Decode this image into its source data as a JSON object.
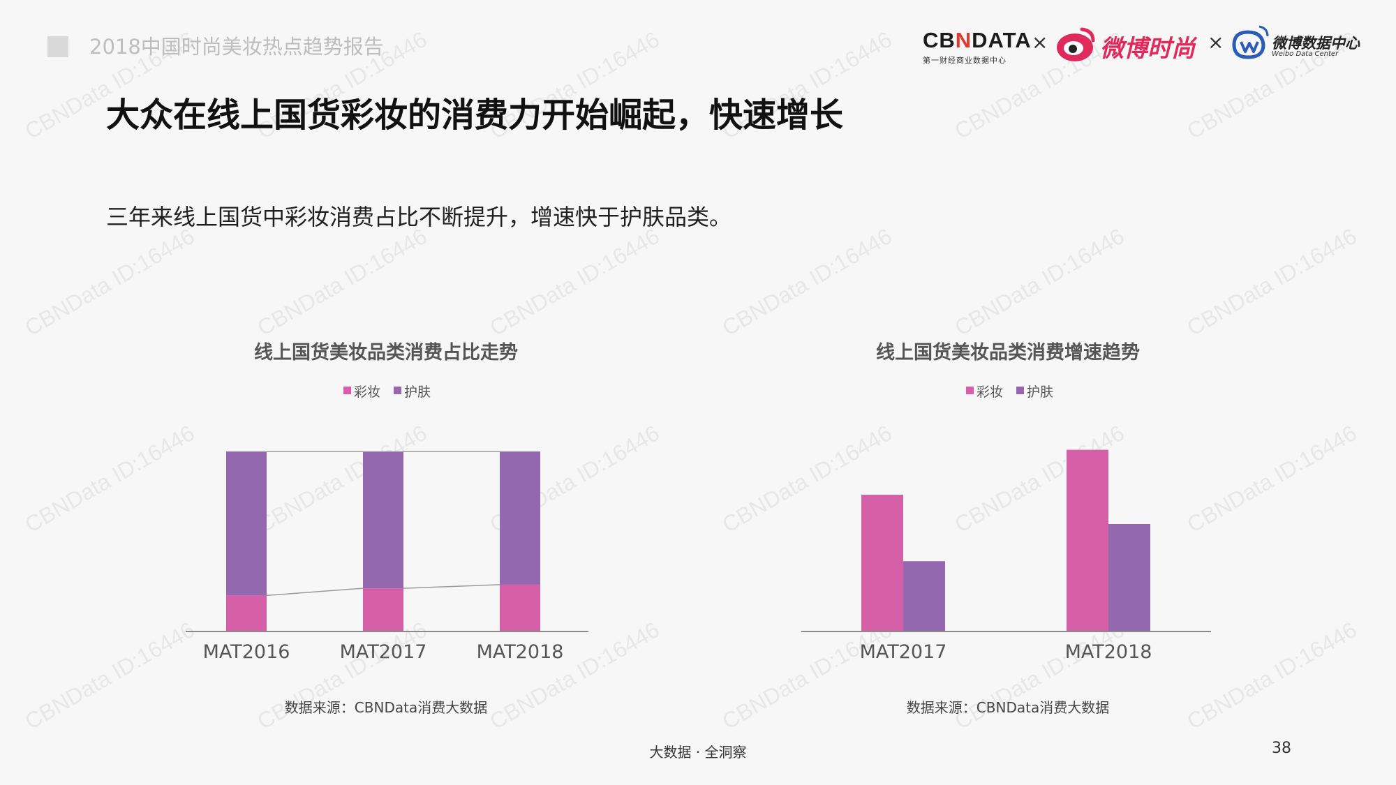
{
  "header": {
    "report_label": "2018中国时尚美妆热点趋势报告",
    "title": "大众在线上国货彩妆的消费力开始崛起，快速增长",
    "subtitle": "三年来线上国货中彩妆消费占比不断提升，增速快于护肤品类。"
  },
  "logos": {
    "cbn": "CBNDATA",
    "cbn_tagline": "第一财经商业数据中心",
    "separator": "×",
    "weibo_fashion": "微博时尚",
    "weibo_data_center": "微博数据中心",
    "weibo_data_center_en": "Weibo Data Center"
  },
  "watermark_text": "CBNData ID:16446",
  "colors": {
    "makeup": "#d660a7",
    "skincare": "#9468ae",
    "axis": "#8a8a8a",
    "connector": "#9a9a9a"
  },
  "chart_data": [
    {
      "type": "bar",
      "stacked": true,
      "percent": true,
      "title": "线上国货美妆品类消费占比走势",
      "categories": [
        "MAT2016",
        "MAT2017",
        "MAT2018"
      ],
      "series": [
        {
          "name": "彩妆",
          "values": [
            20,
            24,
            26
          ]
        },
        {
          "name": "护肤",
          "values": [
            80,
            76,
            74
          ]
        }
      ],
      "ylim": [
        0,
        100
      ],
      "legend": "top-center",
      "grid": false,
      "source": "数据来源：CBNData消费大数据"
    },
    {
      "type": "bar",
      "title": "线上国货美妆品类消费增速趋势",
      "categories": [
        "MAT2017",
        "MAT2018"
      ],
      "series": [
        {
          "name": "彩妆",
          "values": [
            70,
            93
          ]
        },
        {
          "name": "护肤",
          "values": [
            36,
            55
          ]
        }
      ],
      "ylim": [
        0,
        100
      ],
      "legend": "top-center",
      "grid": false,
      "source": "数据来源：CBNData消费大数据"
    }
  ],
  "footer": {
    "tagline": "大数据 · 全洞察",
    "page_number": "38"
  }
}
